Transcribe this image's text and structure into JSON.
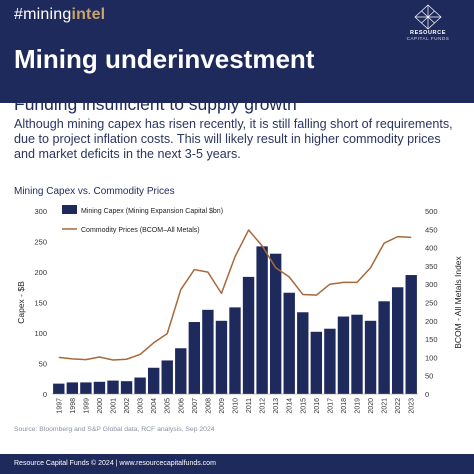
{
  "header": {
    "hashtag_prefix": "#mining",
    "hashtag_highlight": "intel",
    "title": "Mining underinvestment",
    "logo_name": "RESOURCE",
    "logo_sub": "CAPITAL FUNDS",
    "background": "#1f2a5c",
    "accent": "#c9a46a"
  },
  "subtitle": "Funding insufficient to supply growth",
  "paragraph_lines": [
    "Although mining capex has risen recently, it is still falling short of requirements,",
    "due to project inflation costs. This will likely result in higher commodity prices",
    "and market deficits in the next 3-5 years."
  ],
  "source": "Source: Bloomberg and S&P Global data, RCF analysis, Sep 2024",
  "footer": "Resource Capital Funds © 2024 | www.resourcecapitalfunds.com",
  "chart_data": {
    "type": "bar",
    "title": "Mining Capex vs. Commodity Prices",
    "ylabel": "Capex - $B",
    "y2label": "BCOM - All Metals Index",
    "ylim": [
      0,
      300
    ],
    "y2lim": [
      0,
      500
    ],
    "yticks": [
      0,
      50,
      100,
      150,
      200,
      250,
      300
    ],
    "y2ticks": [
      0,
      50,
      100,
      150,
      200,
      250,
      300,
      350,
      400,
      450,
      500
    ],
    "categories": [
      "1997",
      "1998",
      "1999",
      "2000",
      "2001",
      "2002",
      "2003",
      "2004",
      "2005",
      "2006",
      "2007",
      "2008",
      "2009",
      "2010",
      "2011",
      "2012",
      "2013",
      "2014",
      "2015",
      "2016",
      "2017",
      "2018",
      "2019",
      "2020",
      "2021",
      "2022",
      "2023"
    ],
    "legend_position": "top-left",
    "grid": false,
    "series": [
      {
        "name": "Mining Capex (Mining Expansion Capital $bn)",
        "type": "bar",
        "axis": "left",
        "color": "#1f2a5c",
        "values": [
          17,
          19,
          19,
          20,
          22,
          21,
          27,
          43,
          55,
          75,
          118,
          138,
          120,
          142,
          192,
          242,
          230,
          166,
          134,
          102,
          107,
          127,
          130,
          120,
          152,
          175,
          195
        ]
      },
      {
        "name": "Commodity Prices (BCOM–All Metals)",
        "type": "line",
        "axis": "right",
        "color": "#a9683a",
        "values": [
          100,
          96,
          94,
          101,
          93,
          95,
          108,
          140,
          165,
          285,
          340,
          333,
          275,
          375,
          448,
          405,
          345,
          320,
          272,
          270,
          300,
          305,
          305,
          345,
          412,
          430,
          428
        ]
      }
    ]
  }
}
